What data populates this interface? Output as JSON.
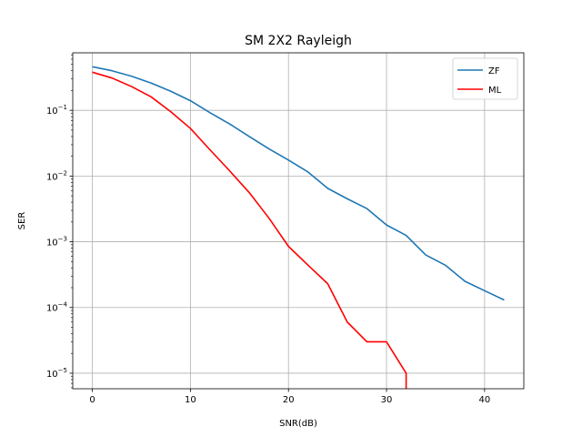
{
  "chart_data": {
    "type": "line",
    "title": "SM 2X2 Rayleigh",
    "xlabel": "SNR(dB)",
    "ylabel": "SER",
    "xlim": [
      -2,
      44
    ],
    "ylim": [
      5.8e-06,
      0.75
    ],
    "yscale": "log",
    "grid": true,
    "legend_position": "top-right",
    "x_ticks": [
      0,
      10,
      20,
      30,
      40
    ],
    "y_ticks": [
      {
        "value": 0.1,
        "mantissa": "10",
        "exponent": "−1"
      },
      {
        "value": 0.01,
        "mantissa": "10",
        "exponent": "−2"
      },
      {
        "value": 0.001,
        "mantissa": "10",
        "exponent": "−3"
      },
      {
        "value": 0.0001,
        "mantissa": "10",
        "exponent": "−4"
      },
      {
        "value": 1e-05,
        "mantissa": "10",
        "exponent": "−5"
      }
    ],
    "series": [
      {
        "name": "ZF",
        "color": "#1f77b4",
        "x": [
          0,
          2,
          4,
          6,
          8,
          10,
          12,
          14,
          16,
          18,
          20,
          22,
          24,
          26,
          28,
          30,
          32,
          34,
          36,
          38,
          40,
          42
        ],
        "y": [
          0.46,
          0.4,
          0.33,
          0.26,
          0.195,
          0.14,
          0.092,
          0.062,
          0.04,
          0.026,
          0.0175,
          0.0115,
          0.0065,
          0.0045,
          0.0032,
          0.0018,
          0.00125,
          0.00063,
          0.00044,
          0.00025,
          0.00018,
          0.00013
        ]
      },
      {
        "name": "ML",
        "color": "#ff0000",
        "x": [
          0,
          2,
          4,
          6,
          8,
          10,
          12,
          14,
          16,
          18,
          20,
          22,
          24,
          26,
          28,
          30,
          32,
          32
        ],
        "y": [
          0.38,
          0.31,
          0.23,
          0.16,
          0.095,
          0.053,
          0.025,
          0.012,
          0.0056,
          0.0023,
          0.00085,
          0.00044,
          0.00023,
          6e-05,
          3e-05,
          3e-05,
          1e-05,
          5.8e-06
        ]
      }
    ]
  }
}
